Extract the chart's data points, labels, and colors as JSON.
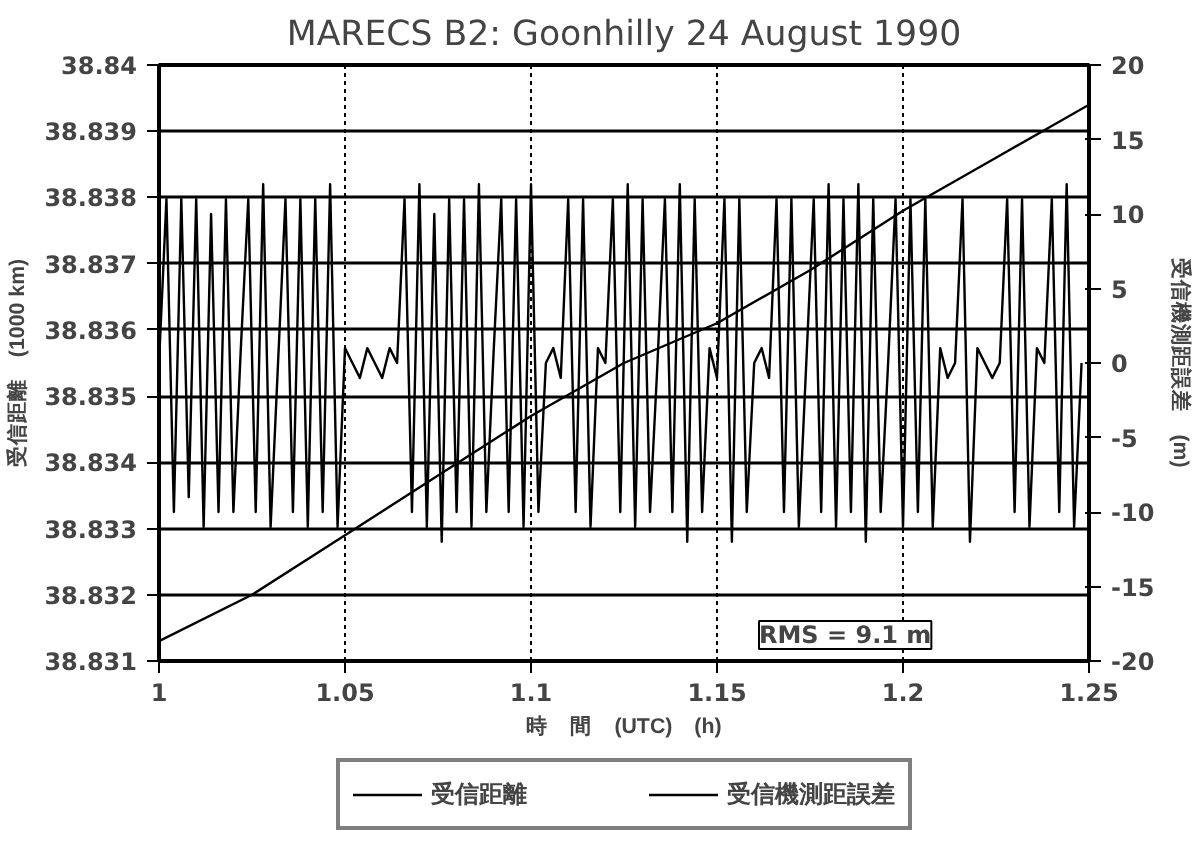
{
  "chart_data": {
    "type": "line",
    "title": "MARECS B2: Goonhilly 24 August 1990",
    "xlabel": "時　間　(UTC)　(h)",
    "ylabel": "受信距離　(1000 km)",
    "y2label": "受信機測距誤差　(m)",
    "xlim": [
      1,
      1.25
    ],
    "xticks": [
      1,
      1.05,
      1.1,
      1.15,
      1.2,
      1.25
    ],
    "ylim": [
      38.831,
      38.84
    ],
    "yticks": [
      38.831,
      38.832,
      38.833,
      38.834,
      38.835,
      38.836,
      38.837,
      38.838,
      38.839,
      38.84
    ],
    "y2lim": [
      -20,
      20
    ],
    "y2ticks": [
      -20,
      -15,
      -10,
      -5,
      0,
      5,
      10,
      15,
      20
    ],
    "grid": true,
    "legend": "bottom",
    "line_style": "solid",
    "annotations": [
      "RMS = 9.1 m"
    ],
    "series": [
      {
        "name": "受信距離",
        "color": "#000000",
        "x": [
          1,
          1.025,
          1.05,
          1.075,
          1.1,
          1.125,
          1.15,
          1.175,
          1.2,
          1.225,
          1.25
        ],
        "values": [
          38.8313,
          38.832,
          38.8329,
          38.8338,
          38.8347,
          38.8355,
          38.8361,
          38.8369,
          38.8378,
          38.8386,
          38.8394
        ]
      },
      {
        "name": "受信機測距誤差",
        "color": "#000000",
        "axis": "y2",
        "x": [
          1.0,
          1.002,
          1.004,
          1.006,
          1.008,
          1.01,
          1.012,
          1.014,
          1.016,
          1.018,
          1.02,
          1.022,
          1.024,
          1.026,
          1.028,
          1.03,
          1.032,
          1.034,
          1.036,
          1.038,
          1.04,
          1.042,
          1.044,
          1.046,
          1.048,
          1.05,
          1.052,
          1.054,
          1.056,
          1.058,
          1.06,
          1.062,
          1.064,
          1.066,
          1.068,
          1.07,
          1.072,
          1.074,
          1.076,
          1.078,
          1.08,
          1.082,
          1.084,
          1.086,
          1.088,
          1.09,
          1.092,
          1.094,
          1.096,
          1.098,
          1.1,
          1.102,
          1.104,
          1.106,
          1.108,
          1.11,
          1.112,
          1.114,
          1.116,
          1.118,
          1.12,
          1.122,
          1.124,
          1.126,
          1.128,
          1.13,
          1.132,
          1.134,
          1.136,
          1.138,
          1.14,
          1.142,
          1.144,
          1.146,
          1.148,
          1.15,
          1.152,
          1.154,
          1.156,
          1.158,
          1.16,
          1.162,
          1.164,
          1.166,
          1.168,
          1.17,
          1.172,
          1.174,
          1.176,
          1.178,
          1.18,
          1.182,
          1.184,
          1.186,
          1.188,
          1.19,
          1.192,
          1.194,
          1.196,
          1.198,
          1.2,
          1.202,
          1.204,
          1.206,
          1.208,
          1.21,
          1.212,
          1.214,
          1.216,
          1.218,
          1.22,
          1.222,
          1.224,
          1.226,
          1.228,
          1.23,
          1.232,
          1.234,
          1.236,
          1.238,
          1.24,
          1.242,
          1.244,
          1.246,
          1.248
        ],
        "values": [
          0,
          11,
          -10,
          11,
          -9,
          11,
          -11,
          10,
          -10,
          11,
          -10,
          1,
          11,
          -10,
          12,
          -11,
          0,
          11,
          -10,
          11,
          -11,
          11,
          -10,
          12,
          -11,
          1,
          0,
          -1,
          1,
          0,
          -1,
          1,
          0,
          11,
          -10,
          12,
          -11,
          10,
          -12,
          11,
          -10,
          11,
          -11,
          12,
          -10,
          1,
          11,
          -10,
          11,
          -11,
          12,
          -10,
          0,
          1,
          -1,
          11,
          -10,
          11,
          -11,
          1,
          0,
          11,
          -10,
          12,
          -11,
          11,
          -10,
          0,
          11,
          -10,
          12,
          -12,
          11,
          -10,
          1,
          -1,
          11,
          -12,
          11,
          -10,
          0,
          1,
          -1,
          11,
          -10,
          11,
          -11,
          0,
          11,
          -10,
          12,
          -11,
          11,
          -10,
          12,
          -12,
          11,
          -10,
          0,
          11,
          -11,
          11,
          -10,
          11,
          -11,
          1,
          -1,
          0,
          11,
          -12,
          1,
          0,
          -1,
          0,
          11,
          -10,
          11,
          -11,
          1,
          0,
          11,
          -10,
          12,
          -11,
          0
        ]
      }
    ]
  }
}
